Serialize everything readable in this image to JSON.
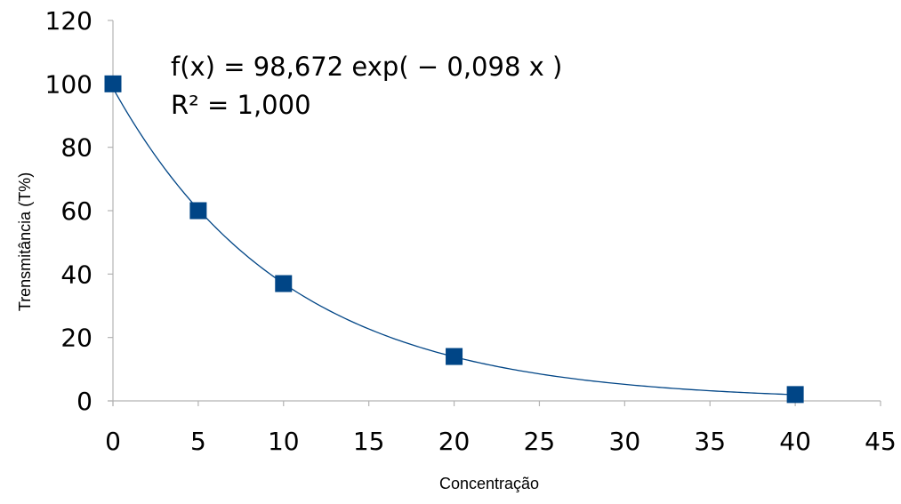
{
  "chart_data": {
    "type": "scatter",
    "title": "",
    "xlabel": "Concentração",
    "ylabel": "Trensmitância (T%)",
    "xlim": [
      0,
      45
    ],
    "ylim": [
      0,
      120
    ],
    "x_ticks": [
      "0",
      "5",
      "10",
      "15",
      "20",
      "25",
      "30",
      "35",
      "40",
      "45"
    ],
    "y_ticks": [
      "0",
      "20",
      "40",
      "60",
      "80",
      "100",
      "120"
    ],
    "grid": false,
    "legend": "none",
    "series": [
      {
        "x": [
          0,
          5,
          10,
          20,
          40
        ],
        "y": [
          100,
          60,
          37,
          14,
          2
        ],
        "marker": "square",
        "color": "#004586"
      }
    ],
    "trendline": {
      "type": "exponential",
      "a": 98.672,
      "b": -0.098,
      "color": "#004586"
    },
    "annotations": {
      "equation": "f(x) = 98,672 exp( − 0,098 x )",
      "r_squared": "R² = 1,000"
    }
  }
}
